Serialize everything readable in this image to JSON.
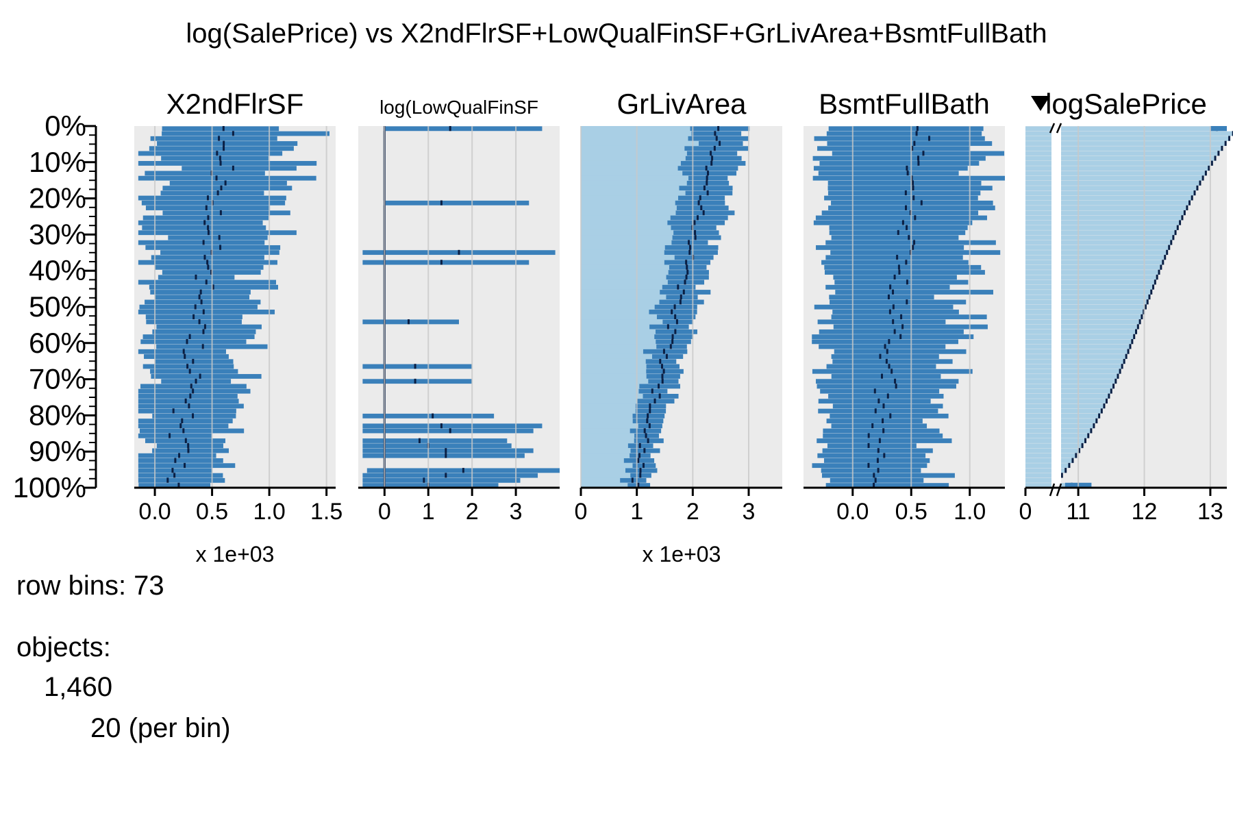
{
  "chart_data": {
    "type": "tableplot",
    "title": "log(SalePrice) vs X2ndFlrSF+LowQualFinSF+GrLivArea+BsmtFullBath",
    "sort_column": "logSalePrice",
    "row_bins": 73,
    "y_ticks": [
      "0%",
      "10%",
      "20%",
      "30%",
      "40%",
      "50%",
      "60%",
      "70%",
      "80%",
      "90%",
      "100%"
    ],
    "columns": [
      {
        "name": "X2ndFlrSF",
        "xlim": [
          -0.18,
          1.58
        ],
        "x_ticks": [
          0,
          0.5,
          1.0,
          1.5
        ],
        "x_tick_labels": [
          "0.0",
          "0.5",
          "1.0",
          "1.5"
        ],
        "multiplier": "x 1e+03",
        "mean_top": 0.65,
        "mean_bottom": 0.15,
        "spread_top": 0.55,
        "spread_bottom": 0.3,
        "seed": 11
      },
      {
        "name": "log(LowQualFinSF",
        "xlim": [
          -0.6,
          4.0
        ],
        "x_ticks": [
          0,
          1,
          2,
          3
        ],
        "x_tick_labels": [
          "0",
          "1",
          "2",
          "3"
        ],
        "multiplier": "",
        "seed": 23
      },
      {
        "name": "GrLivArea",
        "xlim": [
          0,
          3.6
        ],
        "x_ticks": [
          0,
          1,
          2,
          3
        ],
        "x_tick_labels": [
          "0",
          "1",
          "2",
          "3"
        ],
        "multiplier": "x 1e+03",
        "mean_top": 2.5,
        "mean_bottom": 0.95,
        "spread_top": 0.5,
        "spread_bottom": 0.22,
        "seed": 37
      },
      {
        "name": "BsmtFullBath",
        "xlim": [
          -0.42,
          1.3
        ],
        "x_ticks": [
          0,
          0.5,
          1.0
        ],
        "x_tick_labels": [
          "0.0",
          "0.5",
          "1.0"
        ],
        "multiplier": "",
        "mean_top": 0.6,
        "mean_bottom": 0.15,
        "spread_top": 0.55,
        "spread_bottom": 0.42,
        "seed": 53
      },
      {
        "name": "logSalePrice",
        "xlim": [
          10.2,
          13.25
        ],
        "x_ticks": [
          11,
          12,
          13
        ],
        "x_tick_labels": [
          "11",
          "12",
          "13"
        ],
        "zero_label": "0",
        "mean_top": 13.1,
        "mean_bottom": 10.9,
        "sorted": true
      }
    ],
    "colors": {
      "bar": "#3a80ba",
      "bar_light": "#a9cfe5",
      "panel_bg": "#ebebeb",
      "mean_mark": "#0a1f44",
      "grid": "#c8c8c8"
    }
  },
  "footer": {
    "row_bins_label": "row bins: 73",
    "objects_label": "objects:",
    "objects_total": "1,460",
    "objects_per_bin": "20 (per bin)"
  }
}
